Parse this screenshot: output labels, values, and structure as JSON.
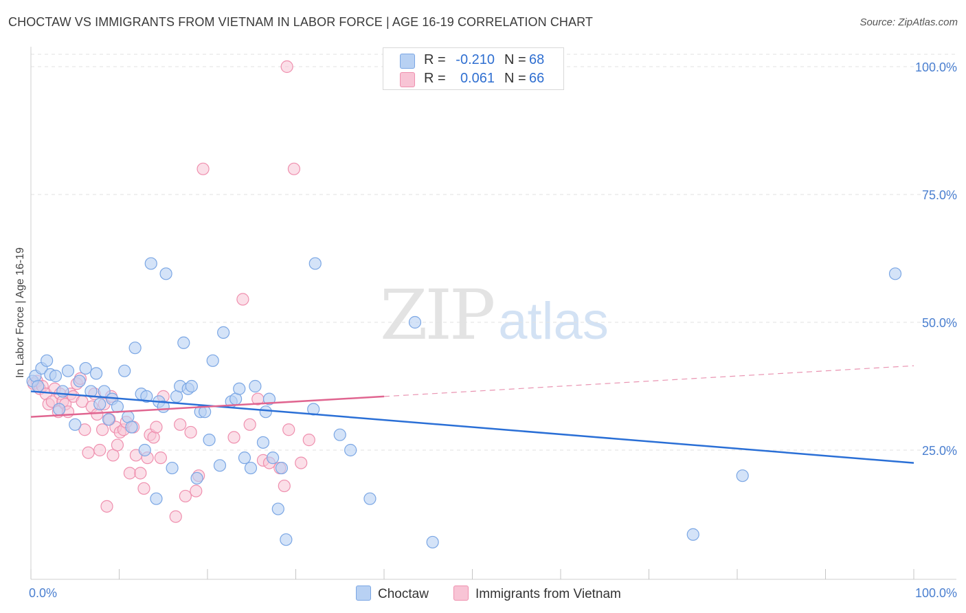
{
  "header": {
    "title": "CHOCTAW VS IMMIGRANTS FROM VIETNAM IN LABOR FORCE | AGE 16-19 CORRELATION CHART",
    "source": "Source: ZipAtlas.com"
  },
  "watermark": {
    "zip": "ZIP",
    "atlas": "atlas"
  },
  "legend": {
    "rows": [
      {
        "r_label": "R =",
        "r_value": "-0.210",
        "n_label": "N =",
        "n_value": "68"
      },
      {
        "r_label": "R =",
        "r_value": "0.061",
        "n_label": "N =",
        "n_value": "66"
      }
    ]
  },
  "bottom_legend": {
    "series1": "Choctaw",
    "series2": "Immigrants from Vietnam"
  },
  "colors": {
    "choctaw_fill": "#b8d1f3",
    "choctaw_stroke": "#7aa6e4",
    "choctaw_line": "#2a6fd6",
    "vietnam_fill": "#f8c4d5",
    "vietnam_stroke": "#ef8fae",
    "vietnam_line": "#e06590",
    "grid": "#e2e2e2",
    "tick_text": "#4a7fd0"
  },
  "chart_data": {
    "type": "scatter",
    "title": "CHOCTAW VS IMMIGRANTS FROM VIETNAM IN LABOR FORCE | AGE 16-19 CORRELATION CHART",
    "xlabel": "",
    "ylabel": "In Labor Force | Age 16-19",
    "xlim": [
      0,
      100
    ],
    "ylim": [
      0,
      105
    ],
    "x_tick_labels": [
      "0.0%",
      "100.0%"
    ],
    "y_ticks": [
      25,
      50,
      75,
      100
    ],
    "y_tick_labels": [
      "25.0%",
      "50.0%",
      "75.0%",
      "100.0%"
    ],
    "grid": true,
    "legend_position": "top-center",
    "series": [
      {
        "name": "Choctaw",
        "R": -0.21,
        "N": 68,
        "trend": {
          "x": [
            0,
            100
          ],
          "y": [
            36.5,
            22.5
          ],
          "style": "solid"
        },
        "points": [
          [
            0.2,
            38.5
          ],
          [
            0.5,
            39.5
          ],
          [
            0.8,
            37.5
          ],
          [
            1.2,
            41
          ],
          [
            1.8,
            42.5
          ],
          [
            2.2,
            39.8
          ],
          [
            2.8,
            39.5
          ],
          [
            3.2,
            33
          ],
          [
            3.6,
            36.5
          ],
          [
            4.2,
            40.5
          ],
          [
            5.0,
            30
          ],
          [
            5.5,
            38.5
          ],
          [
            6.2,
            41
          ],
          [
            6.8,
            36.5
          ],
          [
            7.4,
            40
          ],
          [
            7.8,
            34
          ],
          [
            8.3,
            36.5
          ],
          [
            8.8,
            31
          ],
          [
            9.2,
            35
          ],
          [
            9.8,
            33.5
          ],
          [
            10.6,
            40.5
          ],
          [
            11.0,
            31.5
          ],
          [
            11.4,
            29.5
          ],
          [
            11.8,
            45
          ],
          [
            12.5,
            36
          ],
          [
            12.9,
            25
          ],
          [
            13.1,
            35.5
          ],
          [
            13.6,
            61.5
          ],
          [
            14.2,
            15.5
          ],
          [
            14.5,
            34.5
          ],
          [
            15.0,
            33.5
          ],
          [
            15.3,
            59.5
          ],
          [
            16.0,
            21.5
          ],
          [
            16.5,
            35.5
          ],
          [
            16.9,
            37.5
          ],
          [
            17.3,
            46
          ],
          [
            17.8,
            37
          ],
          [
            18.2,
            37.5
          ],
          [
            18.8,
            19.5
          ],
          [
            19.2,
            32.5
          ],
          [
            19.7,
            32.5
          ],
          [
            20.2,
            27
          ],
          [
            20.6,
            42.5
          ],
          [
            21.4,
            22
          ],
          [
            21.8,
            48
          ],
          [
            22.7,
            34.5
          ],
          [
            23.2,
            35
          ],
          [
            23.6,
            37
          ],
          [
            24.2,
            23.5
          ],
          [
            24.9,
            21.5
          ],
          [
            25.4,
            37.5
          ],
          [
            26.3,
            26.5
          ],
          [
            26.6,
            32.5
          ],
          [
            27.0,
            35
          ],
          [
            27.4,
            23.5
          ],
          [
            28.0,
            13.5
          ],
          [
            28.4,
            21.5
          ],
          [
            28.9,
            7.5
          ],
          [
            32.0,
            33
          ],
          [
            32.2,
            61.5
          ],
          [
            35.0,
            28
          ],
          [
            36.2,
            25
          ],
          [
            38.4,
            15.5
          ],
          [
            43.5,
            50
          ],
          [
            45.5,
            7
          ],
          [
            75.0,
            8.5
          ],
          [
            80.6,
            20
          ],
          [
            97.9,
            59.5
          ]
        ]
      },
      {
        "name": "Immigrants from Vietnam",
        "R": 0.061,
        "N": 66,
        "trend": {
          "x": [
            0,
            40
          ],
          "y": [
            31.5,
            35.5
          ],
          "style": "solid",
          "dashed_to": [
            100,
            41.5
          ]
        },
        "points": [
          [
            0.3,
            38
          ],
          [
            0.7,
            38.5
          ],
          [
            1.0,
            37
          ],
          [
            1.3,
            37.5
          ],
          [
            1.7,
            36
          ],
          [
            2.0,
            34
          ],
          [
            2.4,
            34.5
          ],
          [
            2.7,
            37
          ],
          [
            3.1,
            32.5
          ],
          [
            3.3,
            36
          ],
          [
            3.6,
            34.5
          ],
          [
            3.9,
            34
          ],
          [
            4.2,
            32.5
          ],
          [
            4.5,
            36
          ],
          [
            4.8,
            35.5
          ],
          [
            5.2,
            38
          ],
          [
            5.6,
            39
          ],
          [
            5.8,
            34.5
          ],
          [
            6.1,
            29
          ],
          [
            6.5,
            24.5
          ],
          [
            6.9,
            33.5
          ],
          [
            7.2,
            36
          ],
          [
            7.5,
            32
          ],
          [
            7.8,
            25
          ],
          [
            8.1,
            29
          ],
          [
            8.3,
            34
          ],
          [
            8.6,
            14
          ],
          [
            8.9,
            31
          ],
          [
            9.1,
            35.5
          ],
          [
            9.3,
            24
          ],
          [
            9.6,
            29.5
          ],
          [
            9.8,
            26
          ],
          [
            10.1,
            28.5
          ],
          [
            10.5,
            29
          ],
          [
            10.8,
            30.5
          ],
          [
            11.2,
            20.5
          ],
          [
            11.6,
            29.5
          ],
          [
            11.9,
            24
          ],
          [
            12.4,
            20.5
          ],
          [
            12.8,
            17.5
          ],
          [
            13.2,
            23.5
          ],
          [
            13.5,
            28
          ],
          [
            13.9,
            27.5
          ],
          [
            14.2,
            29.5
          ],
          [
            14.7,
            23.5
          ],
          [
            15.0,
            35.5
          ],
          [
            16.4,
            12
          ],
          [
            16.9,
            30
          ],
          [
            17.5,
            16
          ],
          [
            18.1,
            28.5
          ],
          [
            18.7,
            17
          ],
          [
            19.0,
            20
          ],
          [
            19.5,
            80
          ],
          [
            23.0,
            27.5
          ],
          [
            24.0,
            54.5
          ],
          [
            24.8,
            30
          ],
          [
            25.7,
            35
          ],
          [
            26.3,
            23
          ],
          [
            27.0,
            22.5
          ],
          [
            28.2,
            21.5
          ],
          [
            28.7,
            18
          ],
          [
            29.0,
            100
          ],
          [
            29.2,
            29
          ],
          [
            29.8,
            80
          ],
          [
            30.6,
            22.5
          ],
          [
            31.5,
            27
          ]
        ]
      }
    ]
  }
}
